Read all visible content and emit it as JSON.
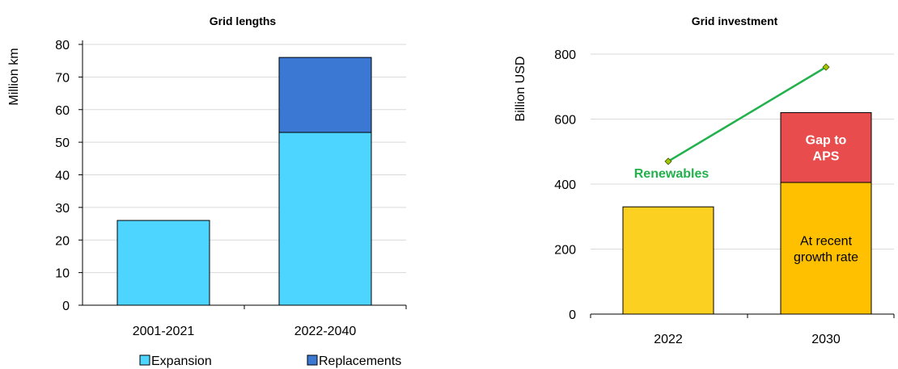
{
  "chart_data": [
    {
      "type": "bar",
      "stacked": true,
      "title": "Grid lengths",
      "ylabel": "Million km",
      "xlabel": "",
      "ylim": [
        0,
        80
      ],
      "yticks": [
        0,
        10,
        20,
        30,
        40,
        50,
        60,
        70,
        80
      ],
      "grid": true,
      "categories": [
        "2001-2021",
        "2022-2040"
      ],
      "series": [
        {
          "name": "Expansion",
          "values": [
            26,
            53
          ],
          "color": "#4dd4ff"
        },
        {
          "name": "Replacements",
          "values": [
            0,
            23
          ],
          "color": "#3b78d4"
        }
      ],
      "legend": [
        "Expansion",
        "Replacements"
      ],
      "legend_position": "bottom"
    },
    {
      "type": "bar",
      "stacked": true,
      "title": "Grid investment",
      "ylabel": "Billion USD",
      "xlabel": "",
      "ylim": [
        0,
        800
      ],
      "yticks": [
        0,
        200,
        400,
        600,
        800
      ],
      "grid": true,
      "categories": [
        "2022",
        "2030"
      ],
      "segments": [
        {
          "category": "2022",
          "base": 0,
          "value": 330,
          "color": "#fcd020",
          "label": ""
        },
        {
          "category": "2030",
          "base": 0,
          "value": 405,
          "color": "#ffc000",
          "label": "At recent growth rate",
          "label_lines": [
            "At recent",
            "growth rate"
          ],
          "label_color": "#000000",
          "label_bold": false
        },
        {
          "category": "2030",
          "base": 405,
          "value": 215,
          "color": "#e84c4c",
          "label": "Gap to APS",
          "label_lines": [
            "Gap to",
            "APS"
          ],
          "label_color": "#ffffff",
          "label_bold": true
        }
      ],
      "line_series": {
        "name": "Renewables",
        "x": [
          "2022",
          "2030"
        ],
        "y": [
          470,
          760
        ],
        "color": "#22b14c",
        "marker_color": "#a4c400"
      }
    }
  ]
}
